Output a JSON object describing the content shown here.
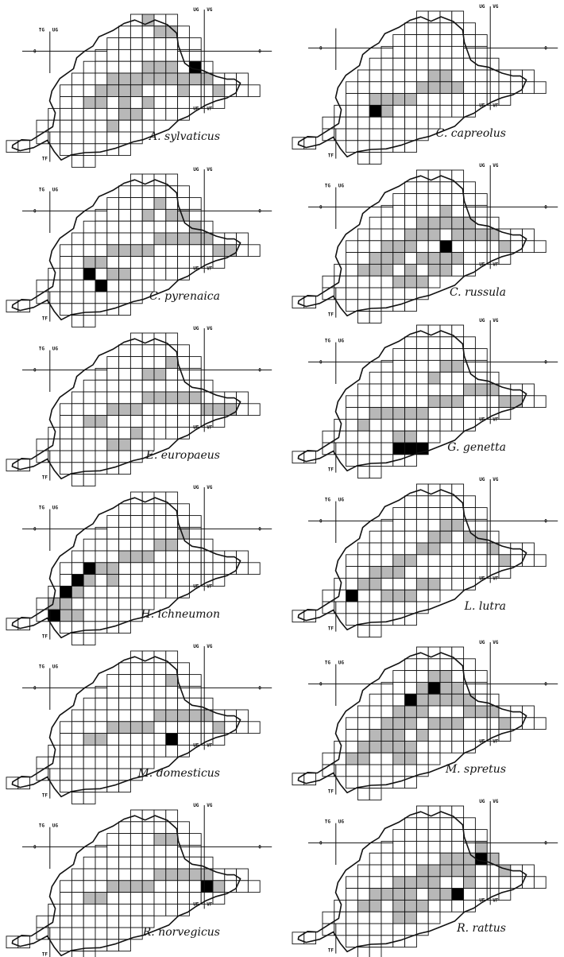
{
  "figure": {
    "panels": [
      {
        "species": "A. sylvaticus",
        "labels": {
          "left_top": "TG",
          "mid_top": "UG",
          "right_top": "UG",
          "right_top2": "VG",
          "bottom_left": "TF",
          "right_mid1": "UF",
          "right_mid2": "VF",
          "zero_left": "0",
          "zero_right": "0"
        }
      },
      {
        "species": "C. capreolus",
        "labels": {
          "left_top": "",
          "mid_top": "",
          "right_top": "UG",
          "right_top2": "VG",
          "bottom_left": "TF",
          "right_mid1": "UF",
          "right_mid2": "VF",
          "zero_left": "0",
          "zero_right": "0"
        }
      },
      {
        "species": "C. pyrenaica",
        "labels": {
          "left_top": "TG",
          "mid_top": "UG",
          "right_top": "UG",
          "right_top2": "VG",
          "bottom_left": "TF",
          "right_mid1": "UF",
          "right_mid2": "VF",
          "zero_left": "0",
          "zero_right": "0"
        }
      },
      {
        "species": "C. russula",
        "labels": {
          "left_top": "TG",
          "mid_top": "UG",
          "right_top": "UG",
          "right_top2": "VG",
          "bottom_left": "TF",
          "right_mid1": "UF",
          "right_mid2": "VF",
          "zero_left": "0",
          "zero_right": "0"
        }
      },
      {
        "species": "E. europaeus",
        "labels": {
          "left_top": "TG",
          "mid_top": "UG",
          "right_top": "UG",
          "right_top2": "VG",
          "bottom_left": "TF",
          "right_mid1": "UF",
          "right_mid2": "VF",
          "zero_left": "0",
          "zero_right": "0"
        }
      },
      {
        "species": "G. genetta",
        "labels": {
          "left_top": "TG",
          "mid_top": "UG",
          "right_top": "UG",
          "right_top2": "VG",
          "bottom_left": "TF",
          "right_mid1": "UF",
          "right_mid2": "VF",
          "zero_left": "0",
          "zero_right": "0"
        }
      },
      {
        "species": "H. ichneumon",
        "labels": {
          "left_top": "TG",
          "mid_top": "UG",
          "right_top": "UG",
          "right_top2": "VG",
          "bottom_left": "TF",
          "right_mid1": "UF",
          "right_mid2": "VF",
          "zero_left": "0",
          "zero_right": "0"
        }
      },
      {
        "species": "L. lutra",
        "labels": {
          "left_top": "TG",
          "mid_top": "UG",
          "right_top": "UG",
          "right_top2": "VG",
          "bottom_left": "TF",
          "right_mid1": "UF",
          "right_mid2": "VF",
          "zero_left": "0",
          "zero_right": "0"
        }
      },
      {
        "species": "M. domesticus",
        "labels": {
          "left_top": "TG",
          "mid_top": "UG",
          "right_top": "UG",
          "right_top2": "VG",
          "bottom_left": "TF",
          "right_mid1": "UF",
          "right_mid2": "VF",
          "zero_left": "0",
          "zero_right": "0"
        }
      },
      {
        "species": "M. spretus",
        "labels": {
          "left_top": "TG",
          "mid_top": "UG",
          "right_top": "UG",
          "right_top2": "VG",
          "bottom_left": "TF",
          "right_mid1": "UF",
          "right_mid2": "VF",
          "zero_left": "0",
          "zero_right": "0"
        }
      },
      {
        "species": "R. norvegicus",
        "labels": {
          "left_top": "TG",
          "mid_top": "UG",
          "right_top": "UG",
          "right_top2": "VG",
          "bottom_left": "TF",
          "right_mid1": "UF",
          "right_mid2": "VF",
          "zero_left": "0",
          "zero_right": "0"
        }
      },
      {
        "species": "R. rattus",
        "labels": {
          "left_top": "TG",
          "mid_top": "UG",
          "right_top": "UG",
          "right_top2": "VG",
          "bottom_left": "TF",
          "right_mid1": "UF",
          "right_mid2": "VF",
          "zero_left": "0",
          "zero_right": "0"
        }
      }
    ],
    "legend_colors": {
      "present": "#b8b8b8",
      "absent": "#ffffff",
      "high": "#000000"
    }
  }
}
